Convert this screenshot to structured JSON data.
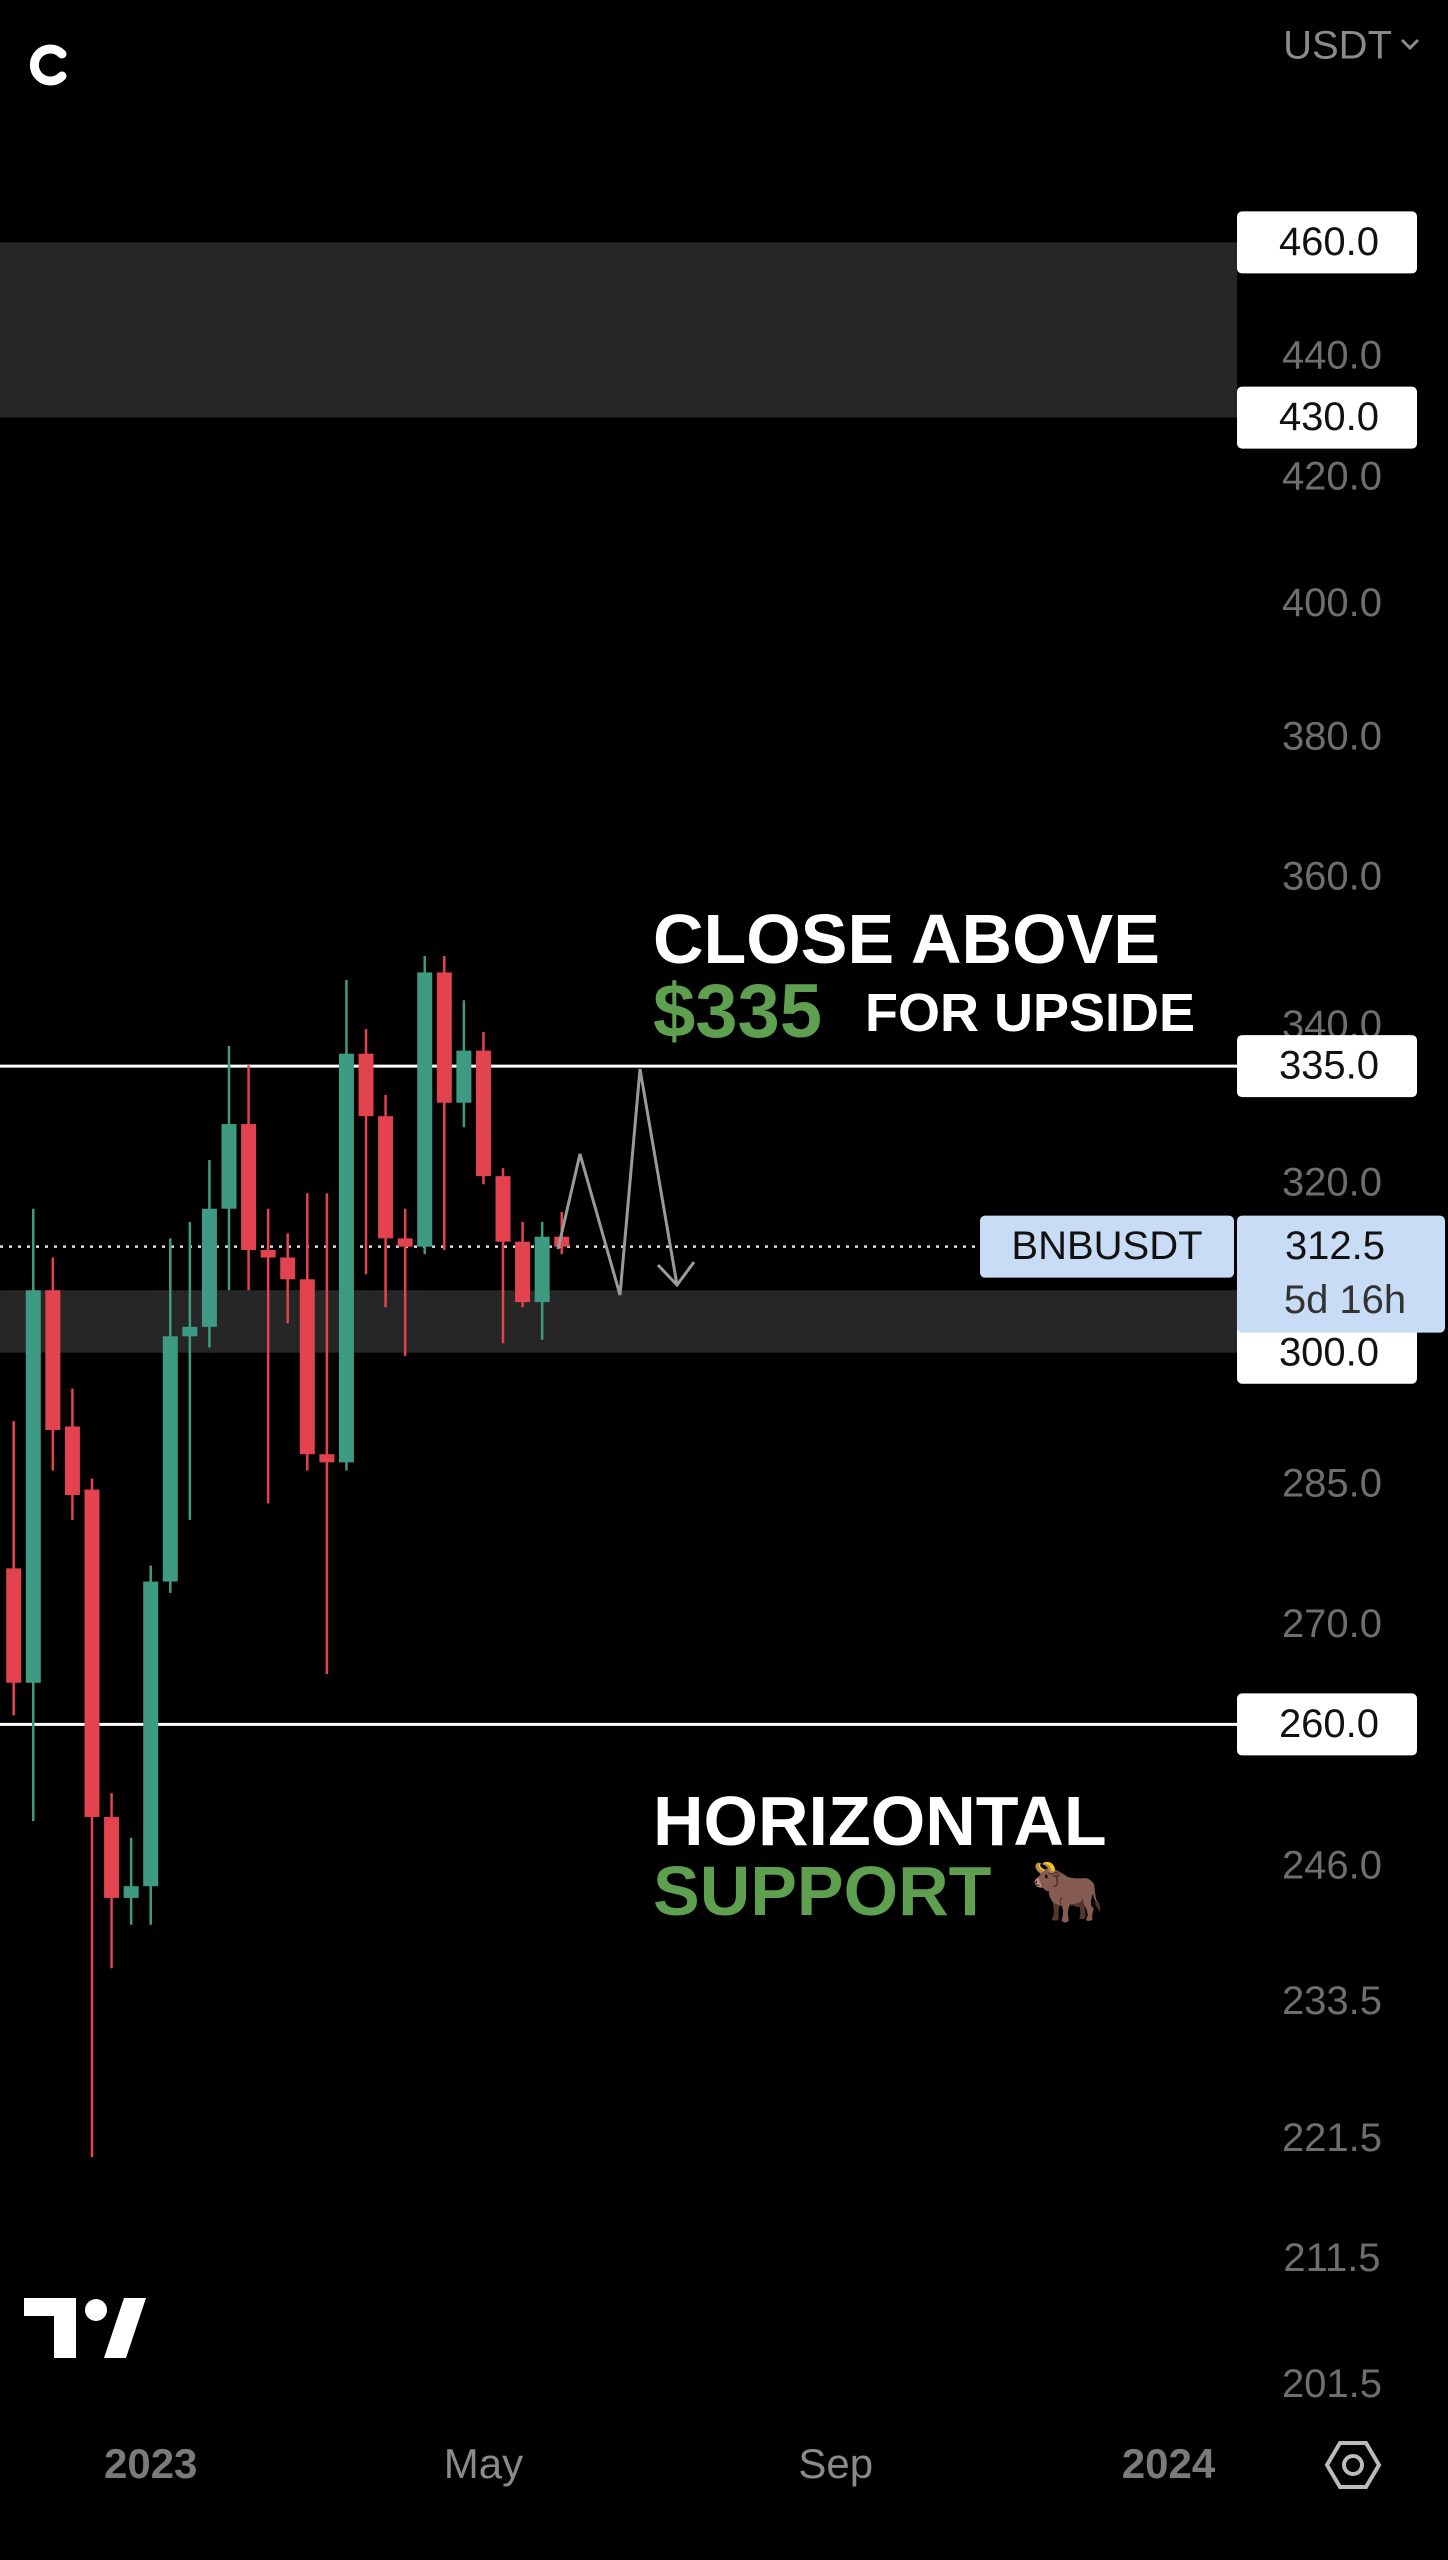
{
  "chart_data": {
    "type": "candlestick",
    "currency": "USDT",
    "log_scale": true,
    "grid": false,
    "ylim": [
      198,
      505
    ],
    "yticks": [
      {
        "value": 440,
        "label": "440.0"
      },
      {
        "value": 420,
        "label": "420.0"
      },
      {
        "value": 400,
        "label": "400.0"
      },
      {
        "value": 380,
        "label": "380.0"
      },
      {
        "value": 360,
        "label": "360.0"
      },
      {
        "value": 340,
        "label": "340.0"
      },
      {
        "value": 320,
        "label": "320.0"
      },
      {
        "value": 285,
        "label": "285.0"
      },
      {
        "value": 270,
        "label": "270.0"
      },
      {
        "value": 246,
        "label": "246.0"
      },
      233.5,
      221.5,
      211.5,
      201.5
    ],
    "xlim": [
      -0.7,
      62.5
    ],
    "xticks": [
      {
        "value": 7,
        "label": "2023"
      },
      {
        "value": 24,
        "label": "May"
      },
      {
        "value": 42,
        "label": "Sep"
      },
      {
        "value": 59,
        "label": "2024"
      }
    ],
    "up_color": "#3f9a82",
    "down_color": "#e2434f",
    "open": [
      276.1,
      264.2,
      307.3,
      291.6,
      284.6,
      250.9,
      243.2,
      244.3,
      274.7,
      301.9,
      303.0,
      317.1,
      327.6,
      312.1,
      311.2,
      308.6,
      288.5,
      287.6,
      336.6,
      328.6,
      313.5,
      312.5,
      347.3,
      330.3,
      337.0,
      321.1,
      313.1,
      305.9,
      313.7
    ],
    "high": [
      292.2,
      317.1,
      311.2,
      295.9,
      285.8,
      253.2,
      248.9,
      276.4,
      313.5,
      315.5,
      323.1,
      337.6,
      335.1,
      317.1,
      314.1,
      319.0,
      319.0,
      346.3,
      339.8,
      331.3,
      317.1,
      349.5,
      349.5,
      343.6,
      339.4,
      322.1,
      315.5,
      315.5,
      316.7
    ],
    "low": [
      260.9,
      250.5,
      286.7,
      281.3,
      220.1,
      236.7,
      240.7,
      240.7,
      273.5,
      281.3,
      300.6,
      307.3,
      307.3,
      283.1,
      303.4,
      286.7,
      265.1,
      286.7,
      309.2,
      305.3,
      299.6,
      311.6,
      312.1,
      327.2,
      320.1,
      301.1,
      305.3,
      301.5,
      311.6
    ],
    "close": [
      264.2,
      307.3,
      291.2,
      284.0,
      250.9,
      243.2,
      244.3,
      274.7,
      301.9,
      303.0,
      317.1,
      327.6,
      312.1,
      311.2,
      308.6,
      288.5,
      287.6,
      336.6,
      328.6,
      313.5,
      312.5,
      347.3,
      330.3,
      337.0,
      321.1,
      313.1,
      305.9,
      313.7,
      312.5
    ],
    "zones": [
      [
        430,
        460
      ],
      [
        300,
        307.3
      ]
    ],
    "levels": [
      {
        "value": 460,
        "label": "460.0",
        "line": false
      },
      {
        "value": 430,
        "label": "430.0",
        "line": false
      },
      {
        "value": 335,
        "label": "335.0",
        "line": true
      },
      {
        "value": 300,
        "label": "300.0",
        "line": false
      },
      {
        "value": 260,
        "label": "260.0",
        "line": true
      }
    ],
    "last_price": {
      "value": 312.5,
      "label": "312.5",
      "symbol": "BNBUSDT",
      "countdown": "5d 16h"
    },
    "annotations": [
      {
        "text": "CLOSE ABOVE",
        "color": "#ffffff"
      },
      {
        "text": "$335",
        "color": "#5ea04f"
      },
      {
        "text": "FOR UPSIDE",
        "color": "#ffffff"
      },
      {
        "text": "HORIZONTAL",
        "color": "#ffffff"
      },
      {
        "text": "SUPPORT",
        "color": "#5ea04f"
      },
      {
        "text": "🐂",
        "color": "#c89a6a"
      }
    ]
  }
}
